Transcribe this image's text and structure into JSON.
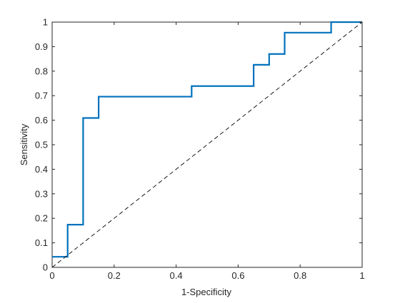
{
  "chart_data": {
    "type": "line",
    "title": "",
    "xlabel": "1-Specificity",
    "ylabel": "Sensitivity",
    "xlim": [
      0,
      1
    ],
    "ylim": [
      0,
      1
    ],
    "grid": false,
    "legend": "none",
    "xticks": [
      0,
      0.2,
      0.4,
      0.6,
      0.8,
      1
    ],
    "xtick_labels": [
      "0",
      "0.2",
      "0.4",
      "0.6",
      "0.8",
      "1"
    ],
    "yticks": [
      0,
      0.1,
      0.2,
      0.3,
      0.4,
      0.5,
      0.6,
      0.7,
      0.8,
      0.9,
      1
    ],
    "ytick_labels": [
      "0",
      "0.1",
      "0.2",
      "0.3",
      "0.4",
      "0.5",
      "0.6",
      "0.7",
      "0.8",
      "0.9",
      "1"
    ],
    "series": [
      {
        "style": "step",
        "color": "#0072BD",
        "x": [
          0,
          0.05,
          0.05,
          0.1,
          0.1,
          0.15,
          0.15,
          0.45,
          0.45,
          0.65,
          0.65,
          0.7,
          0.7,
          0.75,
          0.75,
          0.9,
          0.9,
          1.0
        ],
        "y": [
          0.043,
          0.043,
          0.174,
          0.174,
          0.609,
          0.609,
          0.696,
          0.696,
          0.739,
          0.739,
          0.826,
          0.826,
          0.87,
          0.87,
          0.957,
          0.957,
          1.0,
          1.0
        ]
      },
      {
        "style": "dashed",
        "color": "#000000",
        "x": [
          0,
          1
        ],
        "y": [
          0,
          1
        ]
      }
    ]
  }
}
